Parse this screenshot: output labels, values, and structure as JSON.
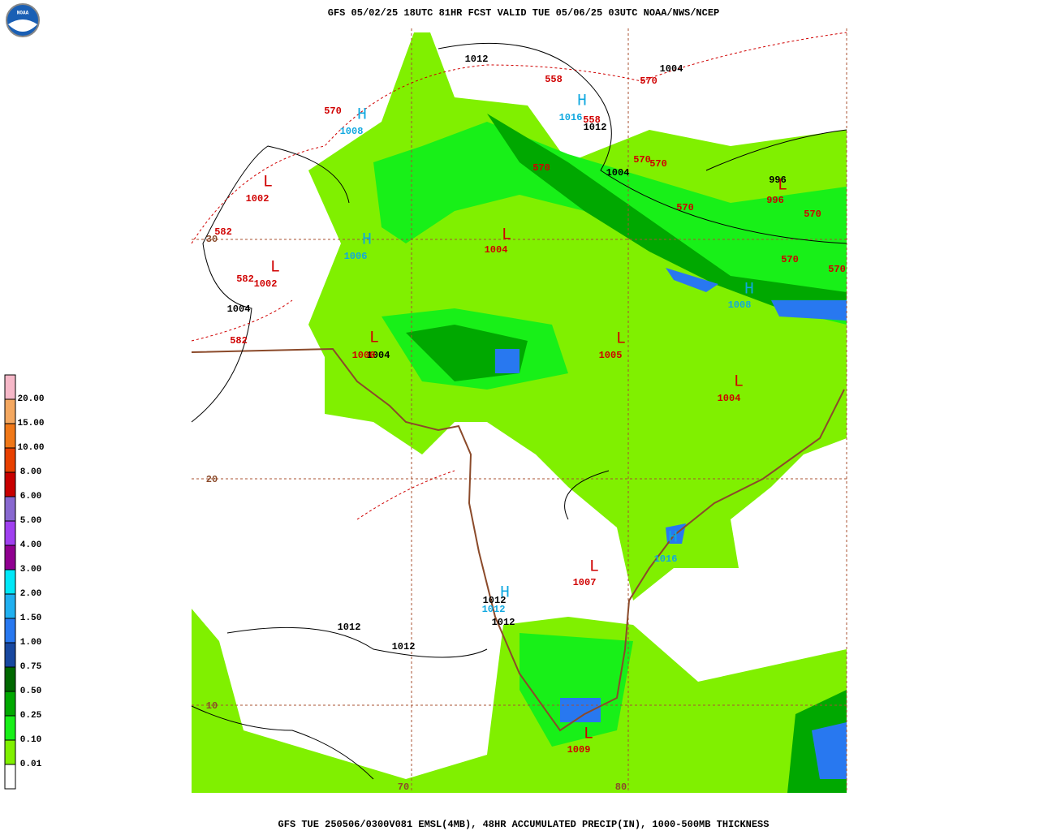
{
  "header": {
    "title": "GFS 05/02/25 18UTC 81HR FCST VALID TUE 05/06/25 03UTC NOAA/NWS/NCEP"
  },
  "footer": {
    "caption": "GFS TUE 250506/0300V081 EMSL(4MB), 48HR ACCUMULATED PRECIP(IN), 1000-500MB THICKNESS"
  },
  "logo": {
    "text": "NOAA"
  },
  "legend": {
    "items": [
      {
        "label": "20.00",
        "color": "#f6b8c8"
      },
      {
        "label": "15.00",
        "color": "#f4a860"
      },
      {
        "label": "10.00",
        "color": "#f07818"
      },
      {
        "label": "8.00",
        "color": "#e84000"
      },
      {
        "label": "6.00",
        "color": "#c80000"
      },
      {
        "label": "5.00",
        "color": "#8868d0"
      },
      {
        "label": "4.00",
        "color": "#a040f0"
      },
      {
        "label": "3.00",
        "color": "#900090"
      },
      {
        "label": "2.00",
        "color": "#00e8f8"
      },
      {
        "label": "1.50",
        "color": "#20b0f0"
      },
      {
        "label": "1.00",
        "color": "#2878f0"
      },
      {
        "label": "0.75",
        "color": "#1848a0"
      },
      {
        "label": "0.50",
        "color": "#006800"
      },
      {
        "label": "0.25",
        "color": "#00a800"
      },
      {
        "label": "0.10",
        "color": "#18f018"
      },
      {
        "label": "0.01",
        "color": "#80f000"
      }
    ]
  },
  "map": {
    "labels": [
      "1012",
      "1004",
      "1012",
      "1004",
      "996",
      "1004",
      "1004",
      "1012",
      "1012",
      "1012",
      "1012",
      "570",
      "558",
      "570",
      "558",
      "570",
      "570",
      "570",
      "570",
      "570",
      "570",
      "570",
      "996",
      "582",
      "582",
      "582",
      "1002",
      "1002",
      "1004",
      "1005",
      "1004",
      "1007",
      "1009",
      "1000",
      "L",
      "L",
      "L",
      "L",
      "L",
      "L",
      "L",
      "L",
      "L",
      "H",
      "1008",
      "H",
      "1016",
      "H",
      "1006",
      "H",
      "1008",
      "H",
      "1012",
      "H",
      "1016",
      "30",
      "20",
      "10",
      "70",
      "80"
    ]
  }
}
